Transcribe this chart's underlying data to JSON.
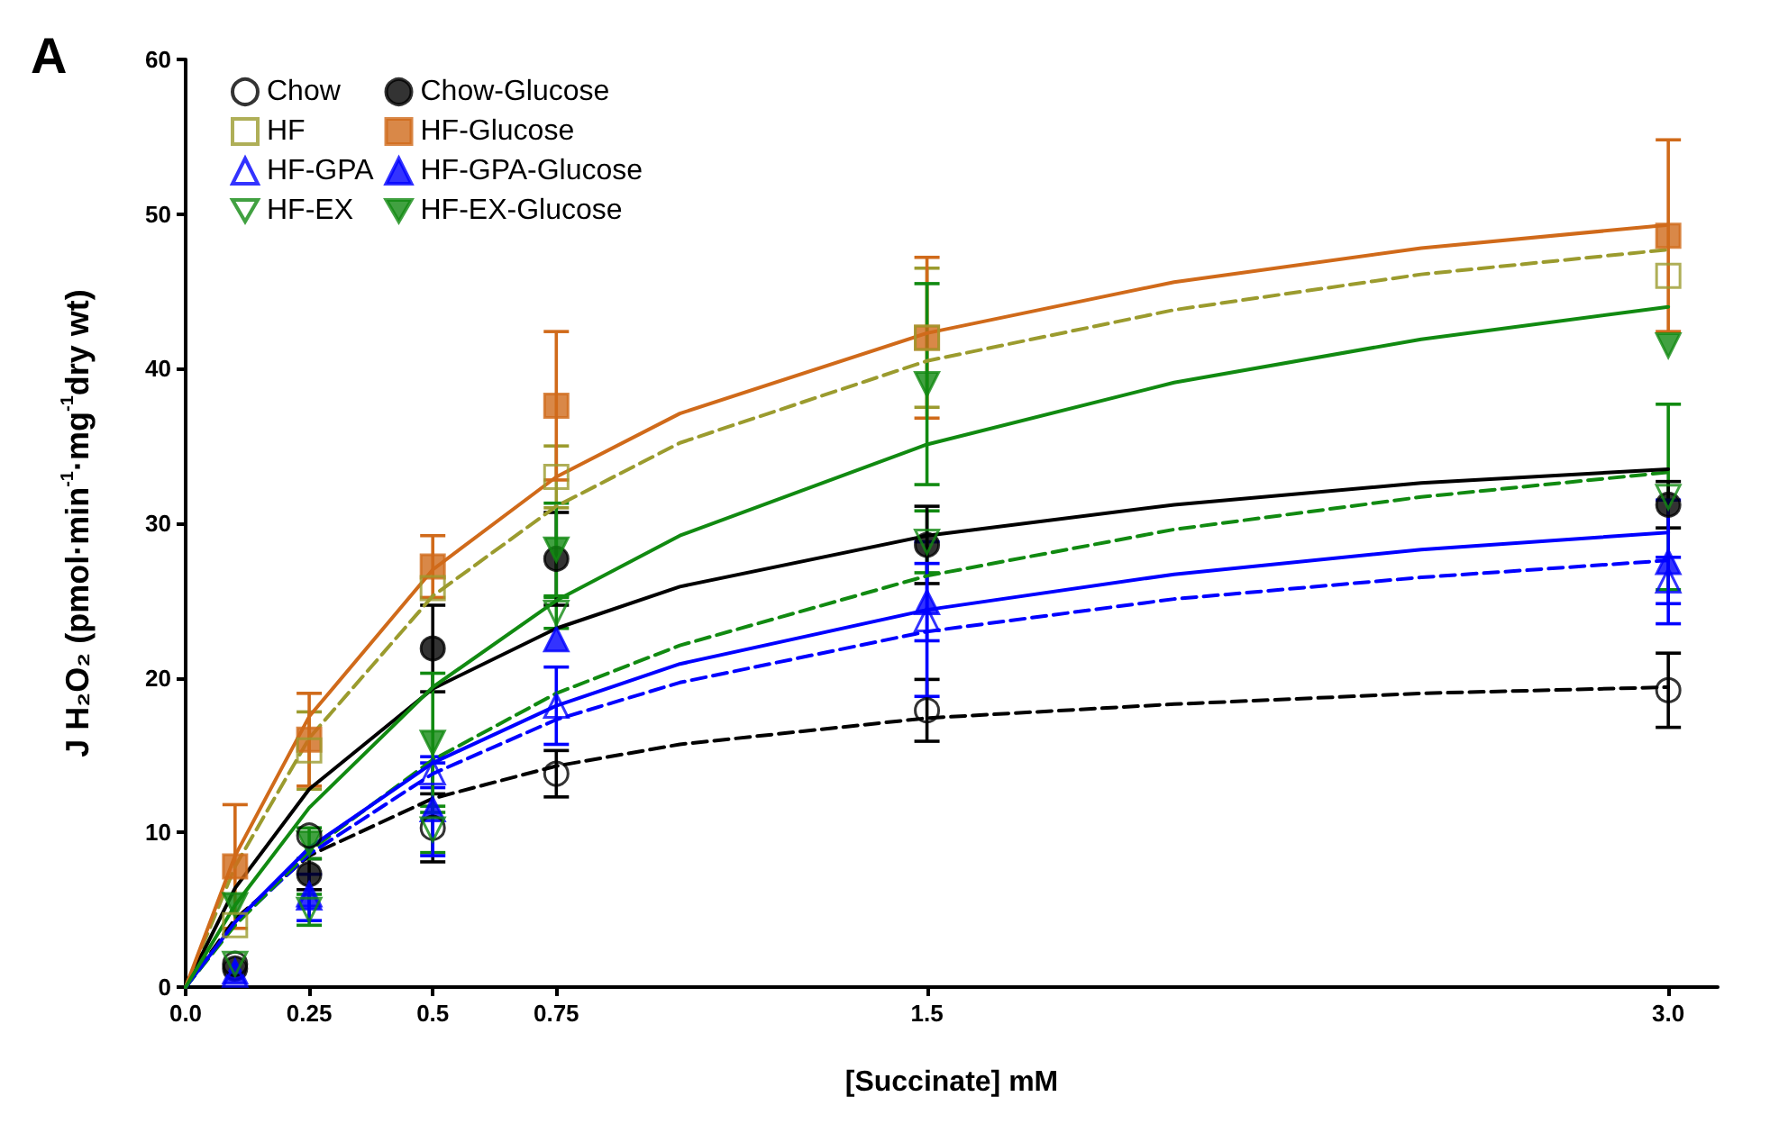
{
  "chart_data": {
    "type": "scatter",
    "title": "A",
    "xlabel": "[Succinate] mM",
    "ylabel": "J H₂O₂ (pmol·min$^{-1}$·mg$^{-1}$dry wt)",
    "xlim": [
      0,
      3.1
    ],
    "xticks": [
      {
        "value": 0,
        "label": "0.0"
      },
      0.25,
      0.5,
      0.75,
      1.5,
      {
        "value": 3,
        "label": "3.0"
      }
    ],
    "ylim": [
      0,
      60
    ],
    "yticks": [
      0,
      10,
      20,
      30,
      40,
      50,
      60
    ],
    "grid": false,
    "legend": "top left",
    "series": [
      {
        "name": "Chow",
        "color": "#000000",
        "marker": "circle-open",
        "x": [
          0.1,
          0.25,
          0.5,
          0.75,
          1.5,
          3.0
        ],
        "values": [
          1.5,
          9.8,
          10.3,
          13.8,
          17.9,
          19.2
        ],
        "errors": [
          null,
          null,
          2.2,
          1.5,
          2,
          2.4
        ]
      },
      {
        "name": "HF",
        "color": "#9b9b2e",
        "marker": "square-open",
        "x": [
          0.1,
          0.25,
          0.5,
          0.75,
          1.5,
          3.0
        ],
        "values": [
          4,
          15.3,
          25.8,
          33,
          42,
          46
        ],
        "errors": [
          null,
          2.5,
          null,
          2,
          4.5,
          null
        ]
      },
      {
        "name": "HF-GPA",
        "color": "#0000ff",
        "marker": "triangle-open",
        "x": [
          0.1,
          0.25,
          0.5,
          0.75,
          1.5,
          3.0
        ],
        "values": [
          0.8,
          6,
          13.9,
          18.2,
          23.8,
          26.3
        ],
        "errors": [
          null,
          null,
          1,
          2.5,
          5,
          1.5
        ]
      },
      {
        "name": "HF-EX",
        "color": "#118a11",
        "marker": "triangle-down-open",
        "x": [
          0.1,
          0.25,
          0.5,
          0.75,
          1.5,
          3.0
        ],
        "values": [
          1.5,
          5,
          10.2,
          24.2,
          28.8,
          31.7
        ],
        "errors": [
          null,
          1,
          1.5,
          1,
          2,
          6
        ]
      },
      {
        "name": "Chow-Glucose",
        "color": "#000000",
        "marker": "circle",
        "x": [
          0.1,
          0.25,
          0.5,
          0.75,
          1.5,
          3.0
        ],
        "values": [
          1.2,
          7.3,
          21.9,
          27.7,
          28.6,
          31.2
        ],
        "errors": [
          null,
          1,
          2.8,
          3,
          2.5,
          1.5
        ]
      },
      {
        "name": "HF-Glucose",
        "color": "#d06a1a",
        "marker": "square",
        "x": [
          0.1,
          0.25,
          0.5,
          0.75,
          1.5,
          3.0
        ],
        "values": [
          7.8,
          16,
          27.2,
          37.6,
          42,
          48.6
        ],
        "errors": [
          4,
          3,
          2,
          4.8,
          5.2,
          6.2
        ]
      },
      {
        "name": "HF-GPA-Glucose",
        "color": "#0000ff",
        "marker": "triangle",
        "x": [
          0.1,
          0.25,
          0.5,
          0.75,
          1.5,
          3.0
        ],
        "values": [
          1,
          5.8,
          11.5,
          22.5,
          24.9,
          27.5
        ],
        "errors": [
          null,
          1.5,
          3,
          null,
          2.5,
          4
        ]
      },
      {
        "name": "HF-EX-Glucose",
        "color": "#118a11",
        "marker": "triangle-down",
        "x": [
          0.1,
          0.25,
          0.5,
          0.75,
          1.5,
          3.0
        ],
        "values": [
          5.3,
          9.3,
          15.8,
          28.3,
          39,
          41.5
        ],
        "errors": [
          null,
          1,
          4.5,
          3,
          6.5,
          null
        ]
      },
      {
        "type": "line",
        "color": "#000000",
        "line_style": "dashed",
        "marker": "none",
        "x": [
          0,
          0.1,
          0.25,
          0.5,
          0.75,
          1,
          1.5,
          2,
          2.5,
          3
        ],
        "values": [
          0,
          4.4,
          8.5,
          12.2,
          14.3,
          15.7,
          17.4,
          18.3,
          19.0,
          19.4
        ]
      },
      {
        "type": "line",
        "color": "#9b9b2e",
        "line_style": "dashed",
        "marker": "none",
        "x": [
          0,
          0.1,
          0.25,
          0.5,
          0.75,
          1,
          1.5,
          2,
          2.5,
          3
        ],
        "values": [
          0,
          7.8,
          16.1,
          25.3,
          31.1,
          35.2,
          40.5,
          43.8,
          46.1,
          47.7
        ]
      },
      {
        "type": "line",
        "color": "#0000ff",
        "line_style": "dashed",
        "marker": "none",
        "x": [
          0,
          0.1,
          0.25,
          0.5,
          0.75,
          1,
          1.5,
          2,
          2.5,
          3
        ],
        "values": [
          0,
          4.1,
          8.6,
          13.8,
          17.3,
          19.7,
          23.0,
          25.1,
          26.5,
          27.6
        ]
      },
      {
        "type": "line",
        "color": "#118a11",
        "line_style": "dashed",
        "marker": "none",
        "x": [
          0,
          0.1,
          0.25,
          0.5,
          0.75,
          1,
          1.5,
          2,
          2.5,
          3
        ],
        "values": [
          0,
          4.0,
          8.8,
          14.7,
          19.0,
          22.1,
          26.6,
          29.6,
          31.7,
          33.3
        ]
      },
      {
        "type": "line",
        "color": "#000000",
        "line_style": "solid",
        "marker": "none",
        "x": [
          0,
          0.1,
          0.25,
          0.5,
          0.75,
          1,
          1.5,
          2,
          2.5,
          3
        ],
        "values": [
          0,
          6.4,
          12.8,
          19.3,
          23.2,
          25.9,
          29.2,
          31.2,
          32.6,
          33.5
        ]
      },
      {
        "type": "line",
        "color": "#d06a1a",
        "line_style": "solid",
        "marker": "none",
        "x": [
          0,
          0.1,
          0.25,
          0.5,
          0.75,
          1,
          1.5,
          2,
          2.5,
          3
        ],
        "values": [
          0,
          8.5,
          17.5,
          27.0,
          33.0,
          37.1,
          42.3,
          45.6,
          47.8,
          49.3
        ]
      },
      {
        "type": "line",
        "color": "#0000ff",
        "line_style": "solid",
        "marker": "none",
        "x": [
          0,
          0.1,
          0.25,
          0.5,
          0.75,
          1,
          1.5,
          2,
          2.5,
          3
        ],
        "values": [
          0,
          4.2,
          9.0,
          14.5,
          18.2,
          20.9,
          24.4,
          26.7,
          28.3,
          29.4
        ]
      },
      {
        "type": "line",
        "color": "#118a11",
        "line_style": "solid",
        "marker": "none",
        "x": [
          0,
          0.1,
          0.25,
          0.5,
          0.75,
          1,
          1.5,
          2,
          2.5,
          3
        ],
        "values": [
          0,
          5.3,
          11.6,
          19.4,
          25.0,
          29.2,
          35.1,
          39.1,
          41.9,
          44.0
        ]
      }
    ]
  }
}
